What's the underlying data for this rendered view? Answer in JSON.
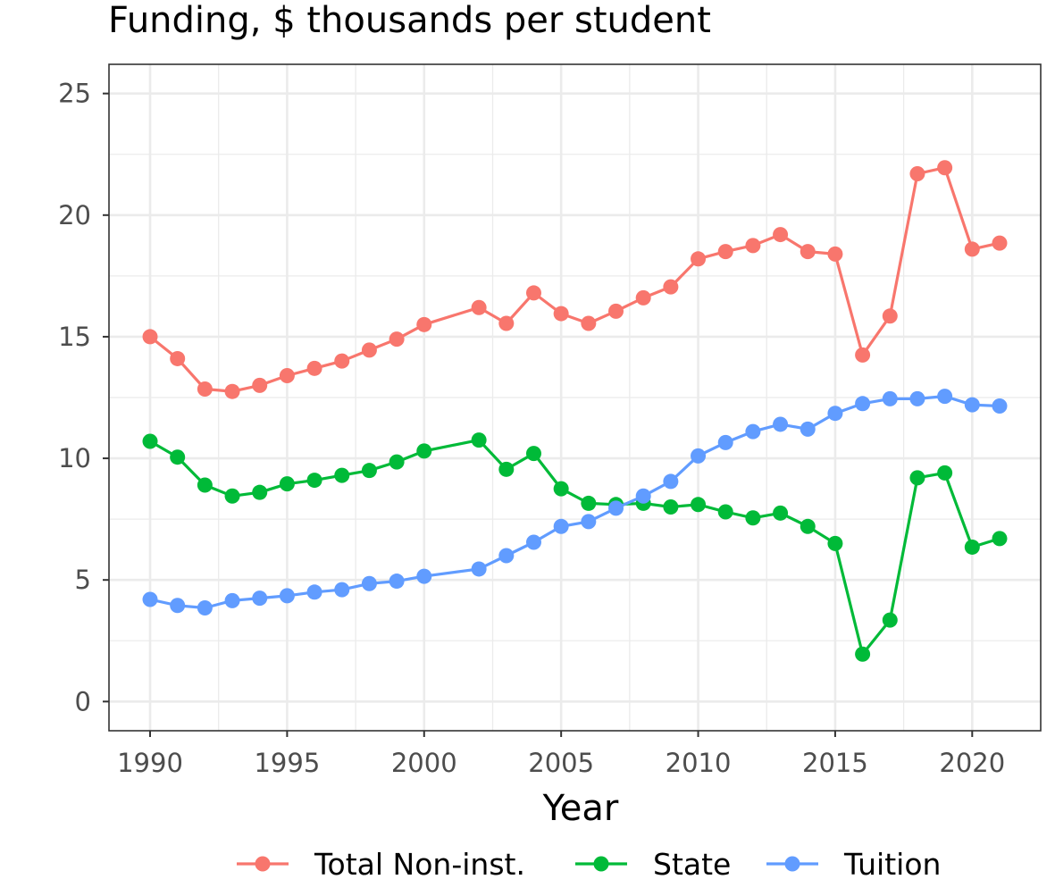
{
  "chart_data": {
    "type": "line",
    "title": "Funding, $ thousands per student",
    "xlabel": "Year",
    "ylabel": "",
    "xlim": [
      1988.5,
      2022.5
    ],
    "ylim": [
      -1.2,
      26.2
    ],
    "x_ticks": [
      "1990",
      "1995",
      "2000",
      "2005",
      "2010",
      "2015",
      "2020"
    ],
    "y_ticks": [
      "0",
      "5",
      "10",
      "15",
      "20",
      "25"
    ],
    "grid": true,
    "legend_position": "bottom",
    "series": [
      {
        "name": "Total Non-inst.",
        "color": "#F8766D",
        "x": [
          1990,
          1991,
          1992,
          1993,
          1994,
          1995,
          1996,
          1997,
          1998,
          1999,
          2000,
          2002,
          2003,
          2004,
          2005,
          2006,
          2007,
          2008,
          2009,
          2010,
          2011,
          2012,
          2013,
          2014,
          2015,
          2016,
          2017,
          2018,
          2019,
          2020,
          2021
        ],
        "y": [
          15.0,
          14.1,
          12.85,
          12.75,
          13.0,
          13.4,
          13.7,
          14.0,
          14.45,
          14.9,
          15.5,
          16.2,
          15.55,
          16.8,
          15.95,
          15.55,
          16.05,
          16.6,
          17.05,
          18.2,
          18.5,
          18.75,
          19.2,
          18.5,
          18.4,
          14.25,
          15.85,
          21.7,
          21.95,
          18.6,
          18.85
        ]
      },
      {
        "name": "State",
        "color": "#00BA38",
        "x": [
          1990,
          1991,
          1992,
          1993,
          1994,
          1995,
          1996,
          1997,
          1998,
          1999,
          2000,
          2002,
          2003,
          2004,
          2005,
          2006,
          2007,
          2008,
          2009,
          2010,
          2011,
          2012,
          2013,
          2014,
          2015,
          2016,
          2017,
          2018,
          2019,
          2020,
          2021
        ],
        "y": [
          10.7,
          10.05,
          8.9,
          8.45,
          8.6,
          8.95,
          9.1,
          9.3,
          9.5,
          9.85,
          10.3,
          10.75,
          9.55,
          10.2,
          8.75,
          8.15,
          8.1,
          8.15,
          8.0,
          8.1,
          7.8,
          7.55,
          7.75,
          7.2,
          6.5,
          1.95,
          3.35,
          9.2,
          9.4,
          6.35,
          6.7
        ]
      },
      {
        "name": "Tuition",
        "color": "#619CFF",
        "x": [
          1990,
          1991,
          1992,
          1993,
          1994,
          1995,
          1996,
          1997,
          1998,
          1999,
          2000,
          2002,
          2003,
          2004,
          2005,
          2006,
          2007,
          2008,
          2009,
          2010,
          2011,
          2012,
          2013,
          2014,
          2015,
          2016,
          2017,
          2018,
          2019,
          2020,
          2021
        ],
        "y": [
          4.2,
          3.95,
          3.85,
          4.15,
          4.25,
          4.35,
          4.5,
          4.6,
          4.85,
          4.95,
          5.15,
          5.45,
          6.0,
          6.55,
          7.2,
          7.4,
          7.95,
          8.45,
          9.05,
          10.1,
          10.65,
          11.1,
          11.4,
          11.2,
          11.85,
          12.25,
          12.45,
          12.45,
          12.55,
          12.2,
          12.15
        ]
      }
    ]
  }
}
